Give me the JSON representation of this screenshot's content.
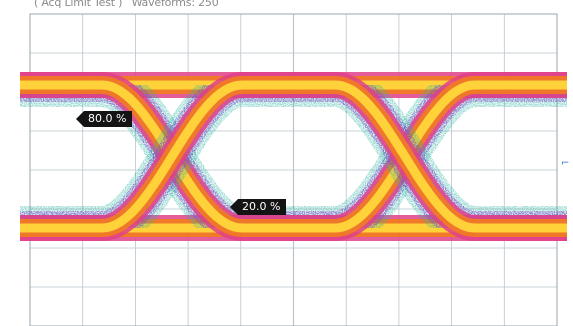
{
  "header": {
    "mode_label": "( Acq Limit Test )",
    "waveforms_label": "Waveforms: 250"
  },
  "markers": {
    "upper_label": "80.0 %",
    "lower_label": "20.0 %"
  },
  "trigger": {
    "glyph": "⌐"
  },
  "colors": {
    "grid": "#b9c4cc",
    "grid_dash": "#a0aab2",
    "density_low": "#2bb3a3",
    "density_mid_low": "#7b4cc9",
    "density_mid": "#e0408a",
    "density_mid_high": "#f07a24",
    "density_high": "#ffd23a",
    "marker_bg": "#141414",
    "trigger": "#2a6fcf"
  }
}
